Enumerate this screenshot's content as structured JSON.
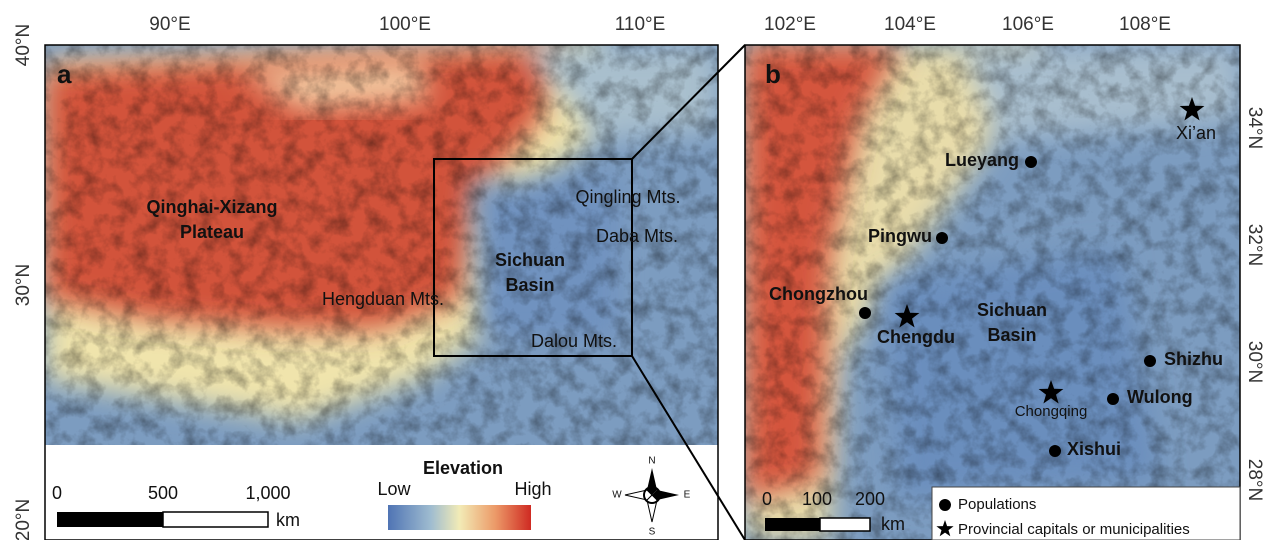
{
  "panel_a": {
    "label": "a",
    "lon_ticks": [
      "90°E",
      "100°E",
      "110°E"
    ],
    "lat_ticks": [
      "40°N",
      "30°N",
      "20°N"
    ],
    "plateau": [
      "Qinghai-Xizang",
      "Plateau"
    ],
    "basin": [
      "Sichuan",
      "Basin"
    ],
    "mountains": [
      "Hengduan Mts.",
      "Qingling Mts.",
      "Daba Mts.",
      "Dalou Mts."
    ],
    "scale": {
      "ticks": [
        "0",
        "500",
        "1,000"
      ],
      "unit": "km"
    },
    "elevation_legend": {
      "title": "Elevation",
      "low": "Low",
      "high": "High"
    },
    "compass": [
      "N",
      "E",
      "S",
      "W"
    ]
  },
  "panel_b": {
    "label": "b",
    "lon_ticks": [
      "102°E",
      "104°E",
      "106°E",
      "108°E"
    ],
    "lat_ticks": [
      "34°N",
      "32°N",
      "30°N",
      "28°N"
    ],
    "basin": [
      "Sichuan",
      "Basin"
    ],
    "populations": [
      "Lueyang",
      "Pingwu",
      "Chongzhou",
      "Shizhu",
      "Wulong",
      "Xishui"
    ],
    "capitals": [
      "Chengdu",
      "Chongqing",
      "Xi’an"
    ],
    "scale": {
      "ticks": [
        "0",
        "100",
        "200"
      ],
      "unit": "km"
    },
    "legend": [
      "Populations",
      "Provincial capitals or municipalities"
    ]
  }
}
